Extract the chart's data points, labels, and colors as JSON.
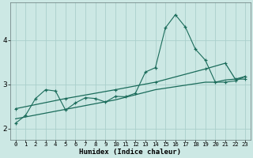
{
  "xlabel": "Humidex (Indice chaleur)",
  "bg_color": "#cce8e4",
  "grid_color": "#aacfcb",
  "line_color": "#1a6b5a",
  "xlim": [
    -0.5,
    23.5
  ],
  "ylim": [
    1.75,
    4.85
  ],
  "yticks": [
    2,
    3,
    4
  ],
  "xticks": [
    0,
    1,
    2,
    3,
    4,
    5,
    6,
    7,
    8,
    9,
    10,
    11,
    12,
    13,
    14,
    15,
    16,
    17,
    18,
    19,
    20,
    21,
    22,
    23
  ],
  "series1_x": [
    0,
    1,
    2,
    3,
    4,
    5,
    6,
    7,
    8,
    9,
    10,
    11,
    12,
    13,
    14,
    15,
    16,
    17,
    18,
    19,
    20,
    21,
    22,
    23
  ],
  "series1_y": [
    2.12,
    2.3,
    2.68,
    2.88,
    2.85,
    2.42,
    2.58,
    2.7,
    2.68,
    2.6,
    2.73,
    2.72,
    2.8,
    3.28,
    3.38,
    4.28,
    4.58,
    4.3,
    3.8,
    3.55,
    3.05,
    3.05,
    3.08,
    3.18
  ],
  "series2_x": [
    0,
    5,
    10,
    14,
    19,
    21,
    22,
    23
  ],
  "series2_y": [
    2.45,
    2.68,
    2.88,
    3.05,
    3.35,
    3.48,
    3.12,
    3.12
  ],
  "series3_x": [
    0,
    10,
    14,
    19,
    20,
    21,
    22,
    23
  ],
  "series3_y": [
    2.22,
    2.65,
    2.88,
    3.05,
    3.05,
    3.1,
    3.12,
    3.18
  ]
}
